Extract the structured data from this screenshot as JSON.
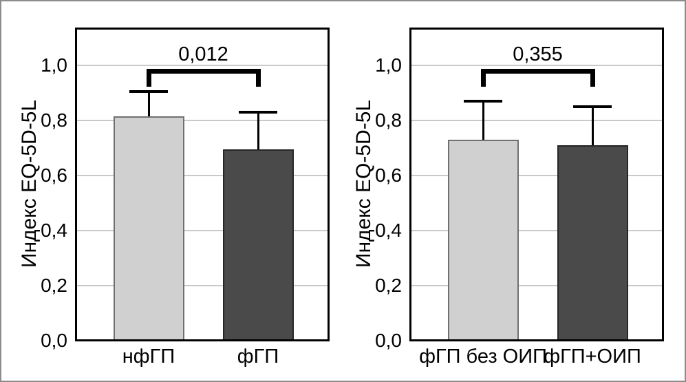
{
  "figure": {
    "background": "#ffffff",
    "border_color": "#8c8c8c",
    "text_color": "#000000",
    "gridline_color": "#c9c9c9",
    "axis_color": "#000000"
  },
  "chart_data": [
    {
      "type": "bar",
      "title": "",
      "xlabel": "",
      "ylabel": "Индекс EQ-5D-5L",
      "categories": [
        "нфГП",
        "фГП"
      ],
      "values": [
        0.815,
        0.695
      ],
      "error_upper": [
        0.905,
        0.83
      ],
      "bar_colors": [
        "#d0d0d0",
        "#4a4a4a"
      ],
      "bar_border_colors": [
        "#707070",
        "#262626"
      ],
      "yticks": [
        {
          "label": "0,0",
          "value": 0.0
        },
        {
          "label": "0,2",
          "value": 0.2
        },
        {
          "label": "0,4",
          "value": 0.4
        },
        {
          "label": "0,6",
          "value": 0.6
        },
        {
          "label": "0,8",
          "value": 0.8
        },
        {
          "label": "1,0",
          "value": 1.0
        }
      ],
      "ylim": [
        0.0,
        1.14
      ],
      "grid": true,
      "legend": false,
      "significance": {
        "label": "0,012",
        "connects": [
          "нфГП",
          "фГП"
        ]
      }
    },
    {
      "type": "bar",
      "title": "",
      "xlabel": "",
      "ylabel": "Индекс EQ-5D-5L",
      "categories": [
        "фГП без ОИП",
        "фГП+ОИП"
      ],
      "values": [
        0.73,
        0.71
      ],
      "error_upper": [
        0.87,
        0.85
      ],
      "bar_colors": [
        "#d0d0d0",
        "#4a4a4a"
      ],
      "bar_border_colors": [
        "#707070",
        "#262626"
      ],
      "yticks": [
        {
          "label": "0,0",
          "value": 0.0
        },
        {
          "label": "0,2",
          "value": 0.2
        },
        {
          "label": "0,4",
          "value": 0.4
        },
        {
          "label": "0,6",
          "value": 0.6
        },
        {
          "label": "0,8",
          "value": 0.8
        },
        {
          "label": "1,0",
          "value": 1.0
        }
      ],
      "ylim": [
        0.0,
        1.14
      ],
      "grid": true,
      "legend": false,
      "significance": {
        "label": "0,355",
        "connects": [
          "фГП без ОИП",
          "фГП+ОИП"
        ]
      }
    }
  ]
}
